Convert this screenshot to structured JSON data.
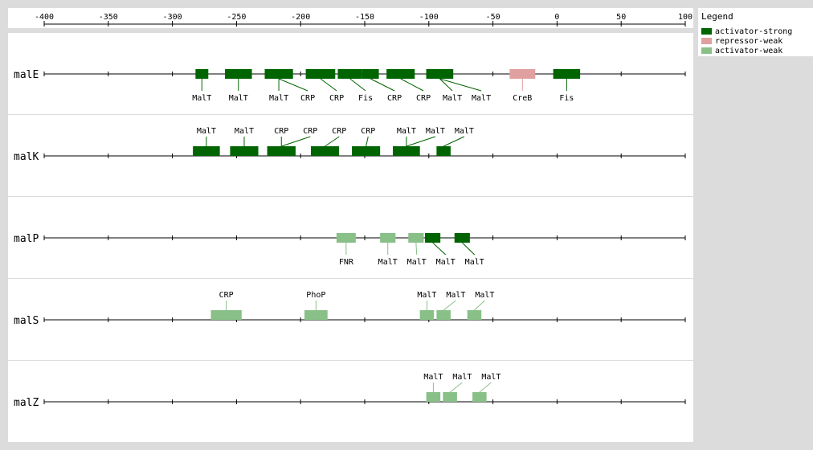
{
  "chart_data": {
    "type": "diagram",
    "axis": {
      "min": -400,
      "max": 100,
      "ticks": [
        -400,
        -350,
        -300,
        -250,
        -200,
        -150,
        -100,
        -50,
        0,
        50,
        100
      ]
    },
    "categories": {
      "activator-strong": "#006400",
      "repressor-weak": "#e0a0a0",
      "activator-weak": "#88c088"
    },
    "genes": [
      {
        "name": "malE",
        "sites": [
          {
            "label": "MalT",
            "start": -282,
            "end": -272,
            "cat": "activator-strong",
            "pos": "below"
          },
          {
            "label": "MalT",
            "start": -259,
            "end": -238,
            "cat": "activator-strong",
            "pos": "below"
          },
          {
            "label": "MalT",
            "start": -228,
            "end": -206,
            "cat": "activator-strong",
            "pos": "below"
          },
          {
            "label": "CRP",
            "start": -228,
            "end": -206,
            "cat": "activator-strong",
            "pos": "below"
          },
          {
            "label": "CRP",
            "start": -196,
            "end": -173,
            "cat": "activator-strong",
            "pos": "below"
          },
          {
            "label": "Fis",
            "start": -171,
            "end": -152,
            "cat": "activator-strong",
            "pos": "below"
          },
          {
            "label": "CRP",
            "start": -152,
            "end": -139,
            "cat": "activator-strong",
            "pos": "below"
          },
          {
            "label": "CRP",
            "start": -133,
            "end": -111,
            "cat": "activator-strong",
            "pos": "below"
          },
          {
            "label": "MalT",
            "start": -102,
            "end": -81,
            "cat": "activator-strong",
            "pos": "below"
          },
          {
            "label": "MalT",
            "start": -102,
            "end": -81,
            "cat": "activator-strong",
            "pos": "below"
          },
          {
            "label": "CreB",
            "start": -37,
            "end": -17,
            "cat": "repressor-weak",
            "pos": "below"
          },
          {
            "label": "Fis",
            "start": -3,
            "end": 18,
            "cat": "activator-strong",
            "pos": "below"
          }
        ]
      },
      {
        "name": "malK",
        "sites": [
          {
            "label": "MalT",
            "start": -284,
            "end": -263,
            "cat": "activator-strong",
            "pos": "above"
          },
          {
            "label": "MalT",
            "start": -255,
            "end": -233,
            "cat": "activator-strong",
            "pos": "above"
          },
          {
            "label": "CRP",
            "start": -226,
            "end": -204,
            "cat": "activator-strong",
            "pos": "above"
          },
          {
            "label": "CRP",
            "start": -226,
            "end": -204,
            "cat": "activator-strong",
            "pos": "above"
          },
          {
            "label": "CRP",
            "start": -192,
            "end": -170,
            "cat": "activator-strong",
            "pos": "above"
          },
          {
            "label": "CRP",
            "start": -160,
            "end": -138,
            "cat": "activator-strong",
            "pos": "above"
          },
          {
            "label": "MalT",
            "start": -128,
            "end": -107,
            "cat": "activator-strong",
            "pos": "above"
          },
          {
            "label": "MalT",
            "start": -128,
            "end": -107,
            "cat": "activator-strong",
            "pos": "above"
          },
          {
            "label": "MalT",
            "start": -94,
            "end": -83,
            "cat": "activator-strong",
            "pos": "above"
          }
        ]
      },
      {
        "name": "malP",
        "sites": [
          {
            "label": "FNR",
            "start": -172,
            "end": -157,
            "cat": "activator-weak",
            "pos": "below"
          },
          {
            "label": "MalT",
            "start": -138,
            "end": -126,
            "cat": "activator-weak",
            "pos": "below"
          },
          {
            "label": "MalT",
            "start": -116,
            "end": -104,
            "cat": "activator-weak",
            "pos": "below"
          },
          {
            "label": "MalT",
            "start": -103,
            "end": -91,
            "cat": "activator-strong",
            "pos": "below"
          },
          {
            "label": "MalT",
            "start": -80,
            "end": -68,
            "cat": "activator-strong",
            "pos": "below"
          }
        ]
      },
      {
        "name": "malS",
        "sites": [
          {
            "label": "CRP",
            "start": -270,
            "end": -246,
            "cat": "activator-weak",
            "pos": "above"
          },
          {
            "label": "PhoP",
            "start": -197,
            "end": -179,
            "cat": "activator-weak",
            "pos": "above"
          },
          {
            "label": "MalT",
            "start": -107,
            "end": -96,
            "cat": "activator-weak",
            "pos": "above"
          },
          {
            "label": "MalT",
            "start": -94,
            "end": -83,
            "cat": "activator-weak",
            "pos": "above"
          },
          {
            "label": "MalT",
            "start": -70,
            "end": -59,
            "cat": "activator-weak",
            "pos": "above"
          }
        ]
      },
      {
        "name": "malZ",
        "sites": [
          {
            "label": "MalT",
            "start": -102,
            "end": -91,
            "cat": "activator-weak",
            "pos": "above"
          },
          {
            "label": "MalT",
            "start": -89,
            "end": -78,
            "cat": "activator-weak",
            "pos": "above"
          },
          {
            "label": "MalT",
            "start": -66,
            "end": -55,
            "cat": "activator-weak",
            "pos": "above"
          }
        ]
      }
    ]
  },
  "legend": {
    "title": "Legend",
    "items": [
      {
        "label": "activator-strong",
        "color": "#006400"
      },
      {
        "label": "repressor-weak",
        "color": "#e0a0a0"
      },
      {
        "label": "activator-weak",
        "color": "#88c088"
      }
    ]
  }
}
